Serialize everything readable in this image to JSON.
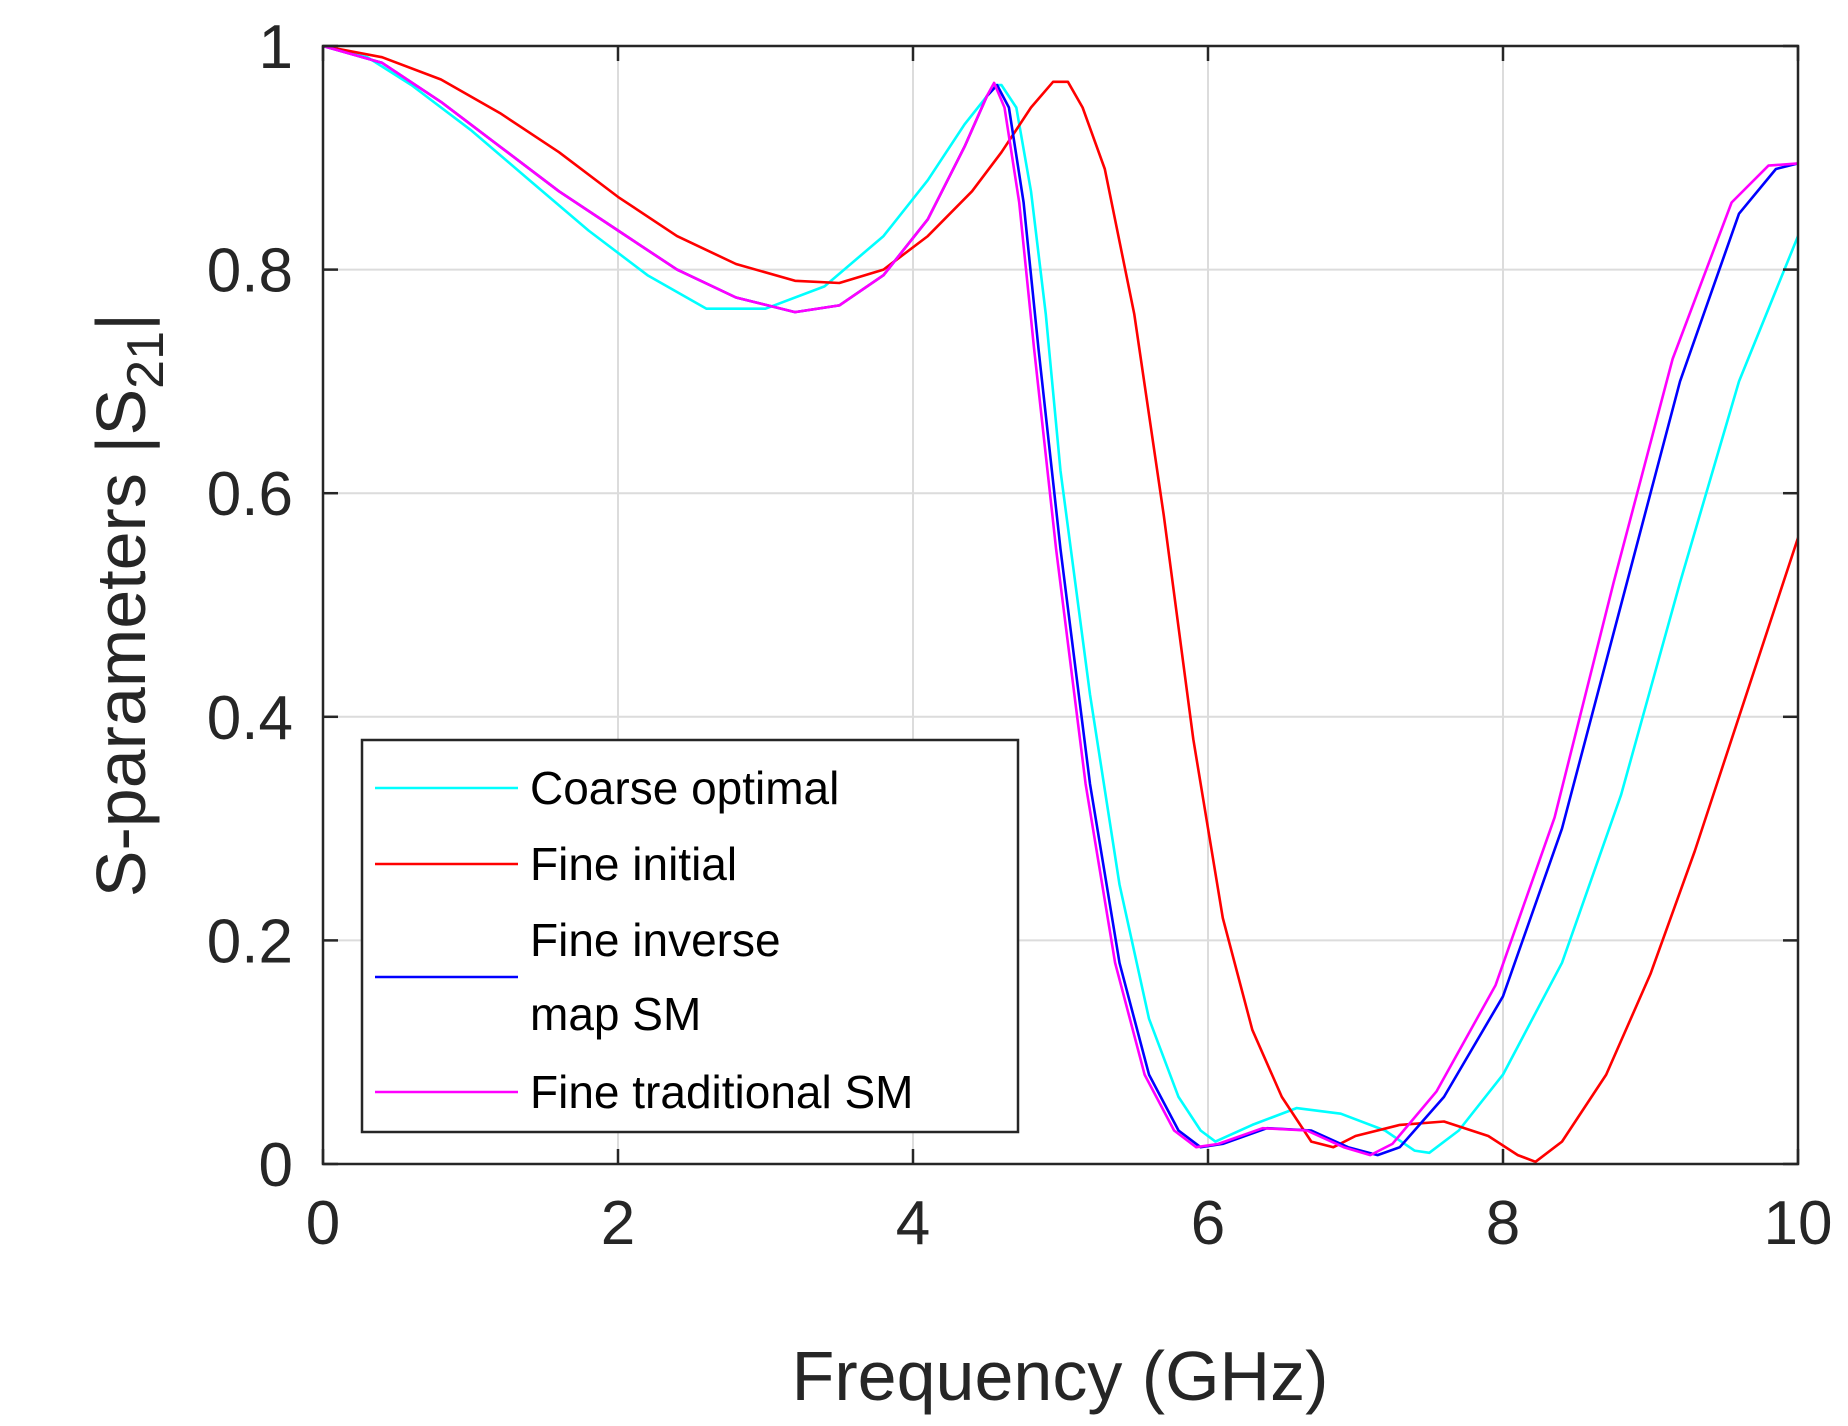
{
  "chart_data": {
    "type": "line",
    "title": "",
    "xlabel": "Frequency (GHz)",
    "ylabel": {
      "prefix": "S-parameters |S",
      "subscript": "21",
      "suffix": "|"
    },
    "xlim": [
      0,
      10
    ],
    "ylim": [
      0,
      1
    ],
    "xticks": [
      0,
      2,
      4,
      6,
      8,
      10
    ],
    "yticks": [
      0,
      0.2,
      0.4,
      0.6,
      0.8,
      1
    ],
    "xtick_labels": [
      "0",
      "2",
      "4",
      "6",
      "8",
      "10"
    ],
    "ytick_labels": [
      "0",
      "0.2",
      "0.4",
      "0.6",
      "0.8",
      "1"
    ],
    "grid": true,
    "legend_position": "lower-left",
    "series": [
      {
        "name": "Coarse optimal",
        "legend_lines": [
          "Coarse optimal"
        ],
        "color": "#00ffff",
        "points": [
          [
            0,
            1
          ],
          [
            0.3,
            0.99
          ],
          [
            0.6,
            0.965
          ],
          [
            1.0,
            0.925
          ],
          [
            1.4,
            0.88
          ],
          [
            1.8,
            0.835
          ],
          [
            2.2,
            0.795
          ],
          [
            2.6,
            0.765
          ],
          [
            3.0,
            0.765
          ],
          [
            3.4,
            0.785
          ],
          [
            3.8,
            0.83
          ],
          [
            4.1,
            0.88
          ],
          [
            4.35,
            0.93
          ],
          [
            4.5,
            0.955
          ],
          [
            4.55,
            0.965
          ],
          [
            4.6,
            0.965
          ],
          [
            4.7,
            0.945
          ],
          [
            4.8,
            0.87
          ],
          [
            4.9,
            0.76
          ],
          [
            5.0,
            0.62
          ],
          [
            5.2,
            0.42
          ],
          [
            5.4,
            0.25
          ],
          [
            5.6,
            0.13
          ],
          [
            5.8,
            0.06
          ],
          [
            5.95,
            0.03
          ],
          [
            6.05,
            0.02
          ],
          [
            6.3,
            0.035
          ],
          [
            6.6,
            0.05
          ],
          [
            6.9,
            0.045
          ],
          [
            7.2,
            0.03
          ],
          [
            7.4,
            0.012
          ],
          [
            7.5,
            0.01
          ],
          [
            7.7,
            0.03
          ],
          [
            8.0,
            0.08
          ],
          [
            8.4,
            0.18
          ],
          [
            8.8,
            0.33
          ],
          [
            9.2,
            0.52
          ],
          [
            9.6,
            0.7
          ],
          [
            10.0,
            0.83
          ]
        ]
      },
      {
        "name": "Fine initial",
        "legend_lines": [
          "Fine initial"
        ],
        "color": "#ff0000",
        "points": [
          [
            0,
            1
          ],
          [
            0.4,
            0.99
          ],
          [
            0.8,
            0.97
          ],
          [
            1.2,
            0.94
          ],
          [
            1.6,
            0.905
          ],
          [
            2.0,
            0.865
          ],
          [
            2.4,
            0.83
          ],
          [
            2.8,
            0.805
          ],
          [
            3.2,
            0.79
          ],
          [
            3.5,
            0.788
          ],
          [
            3.8,
            0.8
          ],
          [
            4.1,
            0.83
          ],
          [
            4.4,
            0.87
          ],
          [
            4.6,
            0.905
          ],
          [
            4.8,
            0.945
          ],
          [
            4.95,
            0.968
          ],
          [
            5.05,
            0.968
          ],
          [
            5.15,
            0.945
          ],
          [
            5.3,
            0.89
          ],
          [
            5.5,
            0.76
          ],
          [
            5.7,
            0.58
          ],
          [
            5.9,
            0.38
          ],
          [
            6.1,
            0.22
          ],
          [
            6.3,
            0.12
          ],
          [
            6.5,
            0.06
          ],
          [
            6.7,
            0.02
          ],
          [
            6.85,
            0.015
          ],
          [
            7.0,
            0.025
          ],
          [
            7.3,
            0.035
          ],
          [
            7.6,
            0.038
          ],
          [
            7.9,
            0.025
          ],
          [
            8.1,
            0.008
          ],
          [
            8.22,
            0.002
          ],
          [
            8.4,
            0.02
          ],
          [
            8.7,
            0.08
          ],
          [
            9.0,
            0.17
          ],
          [
            9.3,
            0.28
          ],
          [
            9.6,
            0.4
          ],
          [
            10.0,
            0.56
          ]
        ]
      },
      {
        "name": "Fine inverse map SM",
        "legend_lines": [
          "Fine inverse",
          "map SM"
        ],
        "color": "#0000ff",
        "points": [
          [
            0,
            1
          ],
          [
            0.4,
            0.985
          ],
          [
            0.8,
            0.95
          ],
          [
            1.2,
            0.91
          ],
          [
            1.6,
            0.87
          ],
          [
            2.0,
            0.835
          ],
          [
            2.4,
            0.8
          ],
          [
            2.8,
            0.775
          ],
          [
            3.2,
            0.762
          ],
          [
            3.5,
            0.768
          ],
          [
            3.8,
            0.795
          ],
          [
            4.1,
            0.845
          ],
          [
            4.35,
            0.91
          ],
          [
            4.5,
            0.955
          ],
          [
            4.57,
            0.965
          ],
          [
            4.65,
            0.945
          ],
          [
            4.75,
            0.86
          ],
          [
            4.85,
            0.73
          ],
          [
            5.0,
            0.55
          ],
          [
            5.2,
            0.34
          ],
          [
            5.4,
            0.18
          ],
          [
            5.6,
            0.08
          ],
          [
            5.8,
            0.03
          ],
          [
            5.95,
            0.015
          ],
          [
            6.1,
            0.018
          ],
          [
            6.4,
            0.032
          ],
          [
            6.7,
            0.03
          ],
          [
            6.95,
            0.015
          ],
          [
            7.15,
            0.008
          ],
          [
            7.3,
            0.015
          ],
          [
            7.6,
            0.06
          ],
          [
            8.0,
            0.15
          ],
          [
            8.4,
            0.3
          ],
          [
            8.8,
            0.5
          ],
          [
            9.2,
            0.7
          ],
          [
            9.6,
            0.85
          ],
          [
            9.85,
            0.89
          ],
          [
            10.0,
            0.895
          ]
        ]
      },
      {
        "name": "Fine traditional SM",
        "legend_lines": [
          "Fine traditional SM"
        ],
        "color": "#ff00ff",
        "points": [
          [
            0,
            1
          ],
          [
            0.4,
            0.985
          ],
          [
            0.8,
            0.95
          ],
          [
            1.2,
            0.91
          ],
          [
            1.6,
            0.87
          ],
          [
            2.0,
            0.835
          ],
          [
            2.4,
            0.8
          ],
          [
            2.8,
            0.775
          ],
          [
            3.2,
            0.762
          ],
          [
            3.5,
            0.768
          ],
          [
            3.8,
            0.795
          ],
          [
            4.1,
            0.845
          ],
          [
            4.35,
            0.91
          ],
          [
            4.5,
            0.955
          ],
          [
            4.55,
            0.967
          ],
          [
            4.62,
            0.945
          ],
          [
            4.72,
            0.86
          ],
          [
            4.82,
            0.73
          ],
          [
            4.97,
            0.55
          ],
          [
            5.17,
            0.34
          ],
          [
            5.37,
            0.18
          ],
          [
            5.57,
            0.08
          ],
          [
            5.77,
            0.03
          ],
          [
            5.92,
            0.015
          ],
          [
            6.07,
            0.018
          ],
          [
            6.37,
            0.032
          ],
          [
            6.67,
            0.03
          ],
          [
            6.92,
            0.015
          ],
          [
            7.1,
            0.008
          ],
          [
            7.25,
            0.018
          ],
          [
            7.55,
            0.065
          ],
          [
            7.95,
            0.16
          ],
          [
            8.35,
            0.31
          ],
          [
            8.75,
            0.52
          ],
          [
            9.15,
            0.72
          ],
          [
            9.55,
            0.86
          ],
          [
            9.8,
            0.893
          ],
          [
            10.0,
            0.895
          ]
        ]
      }
    ]
  }
}
